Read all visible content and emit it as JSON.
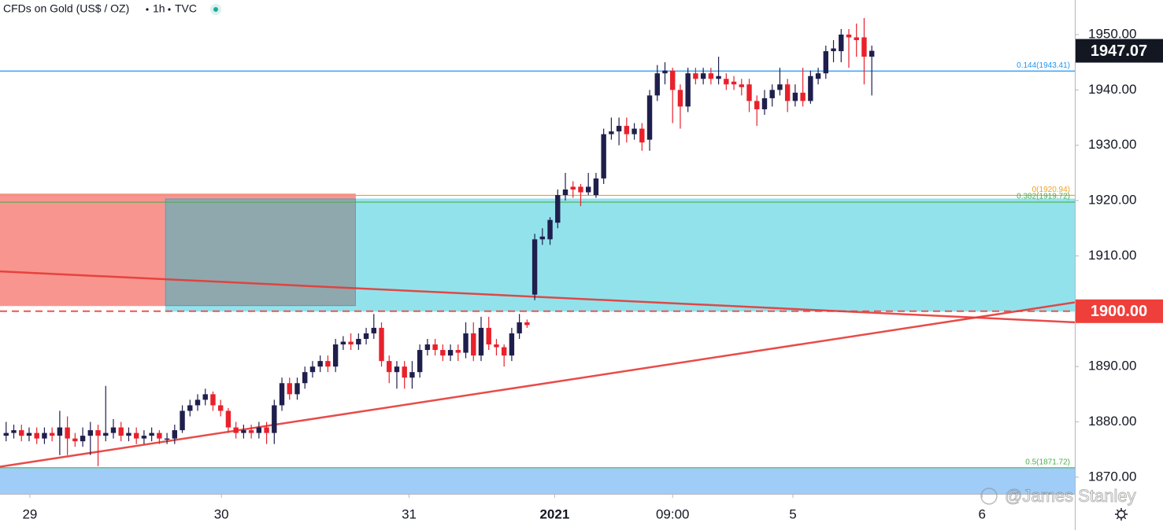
{
  "chart_data": {
    "type": "candlestick",
    "title": "CFDs on Gold (US$ / OZ)",
    "interval": "1h",
    "source": "TVC",
    "watermark": "@James Stanley",
    "up_color": "#1f1f4d",
    "down_color": "#e8212b",
    "x": [
      0,
      1,
      2,
      3,
      4,
      5,
      6,
      7,
      8,
      9,
      10,
      11,
      12,
      13,
      14,
      15,
      16,
      17,
      18,
      19,
      20,
      21,
      22,
      23,
      24,
      25,
      26,
      27,
      28,
      29,
      30,
      31,
      32,
      33,
      34,
      35,
      36,
      37,
      38,
      39,
      40,
      41,
      42,
      43,
      44,
      45,
      46,
      47,
      48,
      49,
      50,
      51,
      52,
      53,
      54,
      55,
      56,
      57,
      58,
      59,
      60,
      61,
      62,
      63,
      64,
      65,
      66,
      67,
      68,
      69,
      70,
      71,
      72,
      73,
      74,
      75,
      76,
      77,
      78,
      79,
      80,
      81,
      82,
      83,
      84,
      85,
      86,
      87,
      88,
      89,
      90,
      91,
      92,
      93,
      94,
      95,
      96,
      97,
      98,
      99,
      100,
      101,
      102,
      103,
      104,
      105,
      106,
      107,
      108,
      109,
      110,
      111,
      112,
      113
    ],
    "open": [
      1877.5,
      1878,
      1878.5,
      1877.5,
      1878,
      1877,
      1878,
      1877.5,
      1879,
      1877,
      1876.5,
      1877.5,
      1878.5,
      1877.5,
      1878,
      1879,
      1877.5,
      1878,
      1877,
      1877.5,
      1878,
      1877,
      1877,
      1878.5,
      1882,
      1883,
      1884,
      1885,
      1883,
      1882,
      1879,
      1878,
      1878.5,
      1878,
      1879,
      1878,
      1883,
      1887,
      1885,
      1887,
      1889,
      1890,
      1891,
      1890,
      1894,
      1894.5,
      1894,
      1895,
      1896,
      1897,
      1891,
      1889,
      1890,
      1888,
      1889,
      1893,
      1894,
      1893,
      1892,
      1893,
      1892.5,
      1896,
      1892,
      1897,
      1894,
      1893.5,
      1892,
      1896,
      1898,
      1903,
      1913,
      1913,
      1916,
      1921,
      1922.5,
      1922.5,
      1921.5,
      1921,
      1924,
      1932,
      1932.5,
      1933.5,
      1932,
      1933,
      1931,
      1939,
      1943,
      1943.5,
      1940,
      1937,
      1943,
      1942,
      1943,
      1942,
      1942,
      1941.5,
      1941,
      1941,
      1938,
      1936.5,
      1938.5,
      1940,
      1941,
      1938,
      1939.5,
      1938,
      1942,
      1943,
      1947,
      1947,
      1950,
      1949.5,
      1949.5,
      1946
    ],
    "high": [
      1880,
      1879.5,
      1879.5,
      1879,
      1879,
      1879,
      1879,
      1882,
      1881,
      1878,
      1879,
      1880,
      1879.5,
      1886.5,
      1880.5,
      1880,
      1879,
      1879,
      1878.5,
      1879,
      1878.5,
      1878,
      1879.5,
      1883,
      1884,
      1885,
      1886,
      1885.5,
      1884,
      1882.5,
      1880,
      1879.5,
      1879.5,
      1880,
      1880,
      1884,
      1888,
      1888,
      1888,
      1890,
      1891,
      1892,
      1892,
      1895,
      1895.5,
      1896,
      1896,
      1897,
      1899.5,
      1898,
      1892,
      1891,
      1891,
      1891,
      1894,
      1895,
      1895,
      1894,
      1894,
      1894,
      1898,
      1898,
      1899,
      1899,
      1895,
      1894,
      1897,
      1899.5,
      1898.5,
      1914,
      1915,
      1917,
      1922,
      1925,
      1923.5,
      1923,
      1925,
      1925,
      1933,
      1935,
      1935,
      1935,
      1934,
      1934,
      1940,
      1944.5,
      1945,
      1944,
      1941,
      1944,
      1944,
      1944,
      1944,
      1946,
      1943,
      1942.5,
      1942,
      1942,
      1939,
      1940,
      1941,
      1944,
      1942,
      1941,
      1944,
      1943.5,
      1944,
      1948,
      1949,
      1951,
      1951,
      1952,
      1953,
      1948
    ],
    "low": [
      1876.5,
      1877,
      1876.5,
      1876.5,
      1876,
      1876,
      1876.5,
      1874,
      1874,
      1875.5,
      1875.5,
      1874,
      1872,
      1876.5,
      1877,
      1876.5,
      1876.5,
      1876,
      1876,
      1876.5,
      1876,
      1876,
      1876,
      1878,
      1881,
      1882,
      1883,
      1882,
      1881,
      1878,
      1877,
      1877,
      1877,
      1877,
      1876,
      1876,
      1882,
      1884,
      1884,
      1886,
      1888,
      1889,
      1889,
      1889,
      1893,
      1893,
      1893,
      1894,
      1895,
      1890,
      1887,
      1886,
      1886,
      1886,
      1888,
      1892,
      1892,
      1891,
      1891,
      1891,
      1891.5,
      1891,
      1891,
      1893,
      1892,
      1890,
      1891,
      1895,
      1897,
      1902,
      1912,
      1912,
      1915,
      1920,
      1920.5,
      1919,
      1921,
      1920.5,
      1923,
      1931,
      1930,
      1930.5,
      1931,
      1929,
      1929,
      1938,
      1941,
      1934,
      1933,
      1936,
      1941,
      1941,
      1941,
      1941,
      1940,
      1940,
      1939,
      1936,
      1933.5,
      1935.5,
      1937,
      1939,
      1936,
      1937,
      1937,
      1937.5,
      1941,
      1942,
      1945,
      1945,
      1944,
      1946,
      1941,
      1939
    ],
    "close": [
      1878,
      1878.5,
      1877.5,
      1878,
      1877,
      1878,
      1877.5,
      1879,
      1877,
      1876.5,
      1877.5,
      1878.5,
      1877.5,
      1878,
      1879,
      1877.5,
      1878,
      1877,
      1877.5,
      1878,
      1877,
      1877,
      1878.5,
      1882,
      1883,
      1884,
      1885,
      1883,
      1882,
      1879,
      1878,
      1878.5,
      1878,
      1879,
      1878,
      1883,
      1887,
      1885,
      1887,
      1889,
      1890,
      1891,
      1890,
      1894,
      1894.5,
      1894,
      1895,
      1896,
      1897,
      1891,
      1889,
      1890,
      1888,
      1889,
      1893,
      1894,
      1893,
      1892,
      1893,
      1892.5,
      1896,
      1892,
      1897,
      1894,
      1893.5,
      1892,
      1896,
      1898,
      1897.5,
      1913,
      1913.5,
      1916.5,
      1921,
      1922,
      1922,
      1921.5,
      1922.5,
      1924,
      1932,
      1932.5,
      1933.5,
      1932,
      1933,
      1930.5,
      1939,
      1943,
      1943.5,
      1940,
      1937,
      1943,
      1942,
      1943,
      1942,
      1942.5,
      1941,
      1941,
      1940.5,
      1938,
      1936.5,
      1938.5,
      1940,
      1941,
      1938,
      1939.5,
      1938,
      1942.5,
      1943,
      1947,
      1947.5,
      1950,
      1949.5,
      1949,
      1946,
      1947.07
    ],
    "xlim": [
      -0.8,
      139.5
    ],
    "xticks": [
      {
        "value": 3.1,
        "label": "29"
      },
      {
        "value": 28.1,
        "label": "30"
      },
      {
        "value": 52.6,
        "label": "31"
      },
      {
        "value": 71.6,
        "label": "2021",
        "bold": true
      },
      {
        "value": 87.0,
        "label": "09:00"
      },
      {
        "value": 102.7,
        "label": "5"
      },
      {
        "value": 127.4,
        "label": "6"
      }
    ],
    "ylim": [
      1867,
      1956.25
    ],
    "yticks": [
      {
        "value": 1870,
        "label": "1870.00"
      },
      {
        "value": 1880,
        "label": "1880.00"
      },
      {
        "value": 1890,
        "label": "1890.00"
      },
      {
        "value": 1900,
        "label": "1900.00"
      },
      {
        "value": 1910,
        "label": "1910.00"
      },
      {
        "value": 1920,
        "label": "1920.00"
      },
      {
        "value": 1930,
        "label": "1930.00"
      },
      {
        "value": 1940,
        "label": "1940.00"
      },
      {
        "value": 1950,
        "label": "1950.00"
      }
    ],
    "grid": false,
    "zones": [
      {
        "x": [
          -0.8,
          45.6
        ],
        "y": [
          1901,
          1921.2
        ],
        "color": "#f8958f"
      },
      {
        "x": [
          20.8,
          139.5
        ],
        "y": [
          1900,
          1920.3
        ],
        "color": "#92e2ec"
      },
      {
        "x": [
          -0.8,
          139.5
        ],
        "y": [
          1867,
          1871.6
        ],
        "color": "#9fcdf7"
      }
    ],
    "zone_overlap_color": "#8fa8ad",
    "levels": [
      {
        "value": 1943.41,
        "label": "0.144(1943.41)",
        "color": "#2196f3"
      },
      {
        "value": 1920.94,
        "label": "0(1920.94)",
        "color": "#f0a020"
      },
      {
        "value": 1919.72,
        "label": "0.382(1919.72)",
        "color": "#4caf50"
      },
      {
        "value": 1871.72,
        "label": "0.5(1871.72)",
        "color": "#4caf50"
      }
    ],
    "dashed_lines": [
      {
        "value": 1900,
        "color": "#ef5350"
      }
    ],
    "trendlines": [
      {
        "x": [
          -0.8,
          139.5
        ],
        "y": [
          1907.2,
          1898.0
        ],
        "color": "#e53935"
      },
      {
        "x": [
          -0.8,
          139.5
        ],
        "y": [
          1871.9,
          1901.6
        ],
        "color": "#e53935"
      }
    ],
    "price_tags": [
      {
        "value": 1947.07,
        "label": "1947.07",
        "color": "#131722"
      },
      {
        "value": 1900,
        "label": "1900.00",
        "color": "#ef3f3a"
      }
    ]
  }
}
